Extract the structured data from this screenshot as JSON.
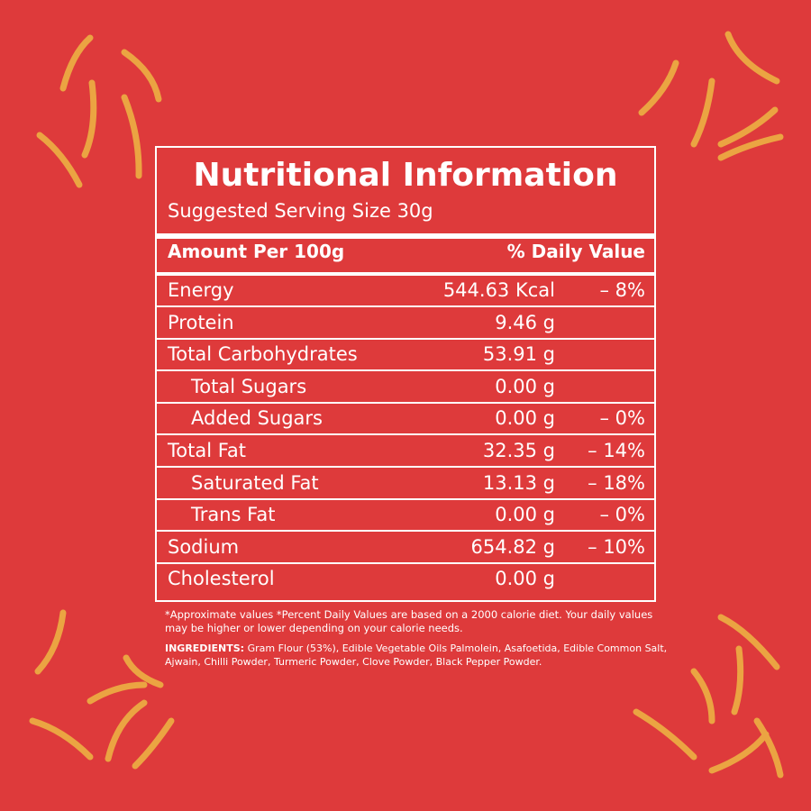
{
  "label": {
    "title": "Nutritional Information",
    "serving": "Suggested Serving Size  30g",
    "header": {
      "amount": "Amount Per 100g",
      "daily_value": "% Daily Value"
    },
    "rows": [
      {
        "name": "Energy",
        "amount": "544.63 Kcal",
        "dv": "– 8%"
      },
      {
        "name": "Protein",
        "amount": "9.46 g"
      },
      {
        "name": "Total Carbohydrates",
        "amount": "53.91 g"
      },
      {
        "name": "Total Sugars",
        "amount": "0.00 g"
      },
      {
        "name": "Added Sugars",
        "amount": "0.00 g",
        "dv": "– 0%"
      },
      {
        "name": "Total Fat",
        "amount": "32.35 g",
        "dv": "– 14%"
      },
      {
        "name": "Saturated Fat",
        "amount": "13.13 g",
        "dv": "– 18%"
      },
      {
        "name": "Trans Fat",
        "amount": "0.00 g",
        "dv": "– 0%"
      },
      {
        "name": "Sodium",
        "amount": "654.82 g",
        "dv": "– 10%"
      },
      {
        "name": "Cholesterol",
        "amount": "0.00 g"
      }
    ],
    "footnote": "*Approximate values  *Percent Daily Values are based on a 2000 calorie diet. Your daily values may be higher or lower depending on your calorie needs.",
    "ingredients_label": "INGREDIENTS:",
    "ingredients": "Gram Flour (53%), Edible Vegetable Oils Palmolein, Asafoetida, Edible Common Salt, Ajwain, Chilli Powder, Turmeric Powder, Clove Powder, Black Pepper Powder."
  }
}
